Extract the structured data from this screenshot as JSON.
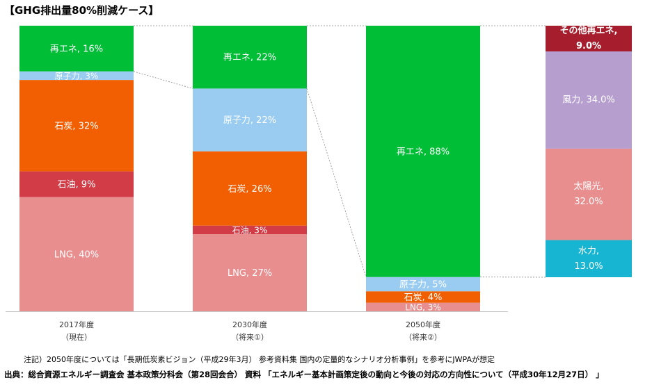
{
  "title": "【GHG排出量80%削減ケース】",
  "note": "注記）2050年度については「長期低炭素ビジョン（平成29年3月） 参考資料集 国内の定量的なシナリオ分析事例」を参考にJWPAが想定",
  "source": "出典：総合資源エネルギー調査会 基本政策分科会（第28回会合） 資料 「エネルギー基本計画策定後の動向と今後の対応の方向性について（平成30年12月27日） 」",
  "chart_data": {
    "type": "bar",
    "stacked": true,
    "ylim": [
      0,
      100
    ],
    "colors": {
      "LNG": "#e88e8e",
      "石油": "#d23c46",
      "石炭": "#f15f02",
      "原子力": "#99ccf0",
      "再エネ": "#00bf37",
      "水力": "#17b5d2",
      "太陽光": "#e88e8e",
      "風力": "#b69fcf",
      "その他再エネ": "#a61e2d"
    },
    "categories": [
      {
        "line1": "2017年度",
        "line2": "（現在）"
      },
      {
        "line1": "2030年度",
        "line2": "（将来①）"
      },
      {
        "line1": "2050年度",
        "line2": "（将来②）"
      }
    ],
    "stacks": [
      [
        {
          "name": "LNG",
          "value": 40,
          "label": "LNG, 40%"
        },
        {
          "name": "石油",
          "value": 9,
          "label": "石油, 9%"
        },
        {
          "name": "石炭",
          "value": 32,
          "label": "石炭, 32%"
        },
        {
          "name": "原子力",
          "value": 3,
          "label": "原子力, 3%"
        },
        {
          "name": "再エネ",
          "value": 16,
          "label": "再エネ, 16%"
        }
      ],
      [
        {
          "name": "LNG",
          "value": 27,
          "label": "LNG, 27%"
        },
        {
          "name": "石油",
          "value": 3,
          "label": "石油, 3%"
        },
        {
          "name": "石炭",
          "value": 26,
          "label": "石炭, 26%"
        },
        {
          "name": "原子力",
          "value": 22,
          "label": "原子力, 22%"
        },
        {
          "name": "再エネ",
          "value": 22,
          "label": "再エネ, 22%"
        }
      ],
      [
        {
          "name": "LNG",
          "value": 3,
          "label": "LNG, 3%"
        },
        {
          "name": "石炭",
          "value": 4,
          "label": "石炭, 4%"
        },
        {
          "name": "原子力",
          "value": 5,
          "label": "原子力, 5%"
        },
        {
          "name": "再エネ",
          "value": 88,
          "label": "再エネ, 88%"
        }
      ]
    ],
    "breakdown": [
      {
        "name": "水力",
        "value": 13.0,
        "line1": "水力,",
        "line2": "13.0%"
      },
      {
        "name": "太陽光",
        "value": 32.0,
        "line1": "太陽光,",
        "line2": "32.0%"
      },
      {
        "name": "風力",
        "value": 34.0,
        "line1": "風力, 34.0%",
        "line2": ""
      },
      {
        "name": "その他再エネ",
        "value": 9.0,
        "line1": "その他再エネ,",
        "line2": "9.0%"
      }
    ]
  }
}
